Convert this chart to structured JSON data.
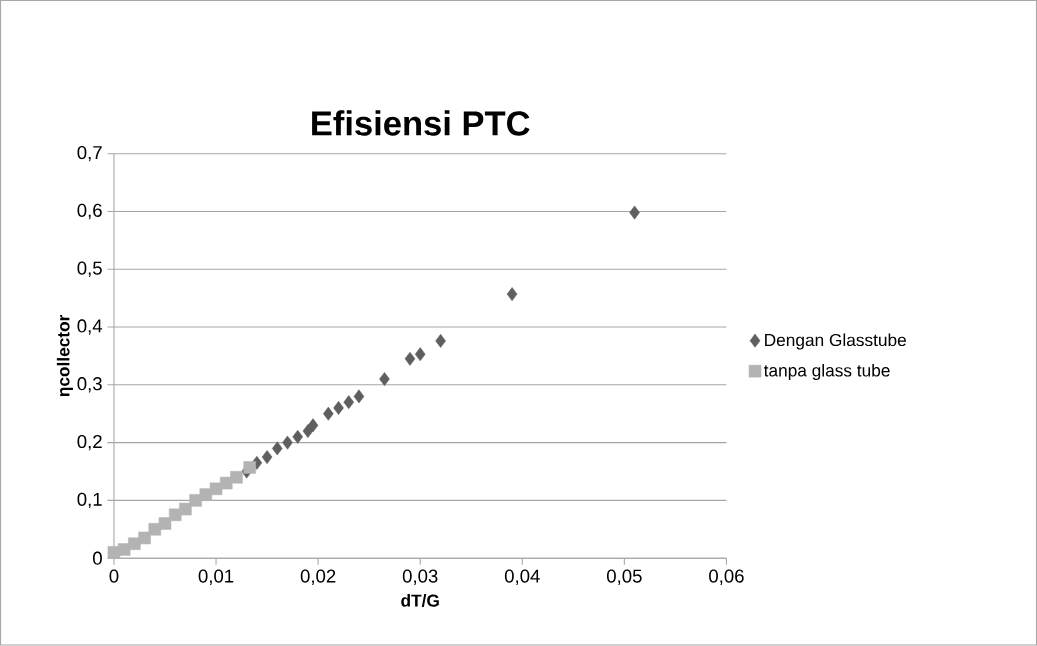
{
  "chart_data": {
    "type": "scatter",
    "title": "Efisiensi PTC",
    "xlabel": "dT/G",
    "ylabel": "ηcollector",
    "xlim": [
      0,
      0.06
    ],
    "ylim": [
      0,
      0.7
    ],
    "xticks": [
      {
        "value": 0,
        "label": "0"
      },
      {
        "value": 0.01,
        "label": "0,01"
      },
      {
        "value": 0.02,
        "label": "0,02"
      },
      {
        "value": 0.03,
        "label": "0,03"
      },
      {
        "value": 0.04,
        "label": "0,04"
      },
      {
        "value": 0.05,
        "label": "0,05"
      },
      {
        "value": 0.06,
        "label": "0,06"
      }
    ],
    "yticks": [
      {
        "value": 0,
        "label": "0"
      },
      {
        "value": 0.1,
        "label": "0,1"
      },
      {
        "value": 0.2,
        "label": "0,2"
      },
      {
        "value": 0.3,
        "label": "0,3"
      },
      {
        "value": 0.4,
        "label": "0,4"
      },
      {
        "value": 0.5,
        "label": "0,5"
      },
      {
        "value": 0.6,
        "label": "0,6"
      },
      {
        "value": 0.7,
        "label": "0,7"
      }
    ],
    "grid": "y",
    "legend": "right",
    "series": [
      {
        "name": "Dengan Glasstube",
        "color": "#5f5f5f",
        "marker": "diamond",
        "x": [
          0.013,
          0.014,
          0.015,
          0.016,
          0.017,
          0.018,
          0.019,
          0.0195,
          0.021,
          0.022,
          0.023,
          0.024,
          0.0265,
          0.029,
          0.03,
          0.032,
          0.039,
          0.051
        ],
        "values": [
          0.15,
          0.165,
          0.175,
          0.19,
          0.2,
          0.21,
          0.22,
          0.23,
          0.25,
          0.26,
          0.27,
          0.28,
          0.31,
          0.345,
          0.353,
          0.376,
          0.457,
          0.598
        ]
      },
      {
        "name": "tanpa glass tube",
        "color": "#b3b3b3",
        "marker": "square",
        "x": [
          0,
          0.001,
          0.002,
          0.003,
          0.004,
          0.005,
          0.006,
          0.007,
          0.008,
          0.009,
          0.01,
          0.011,
          0.012,
          0.0133
        ],
        "values": [
          0.01,
          0.015,
          0.025,
          0.035,
          0.05,
          0.06,
          0.075,
          0.085,
          0.1,
          0.11,
          0.12,
          0.13,
          0.14,
          0.157
        ]
      }
    ]
  }
}
